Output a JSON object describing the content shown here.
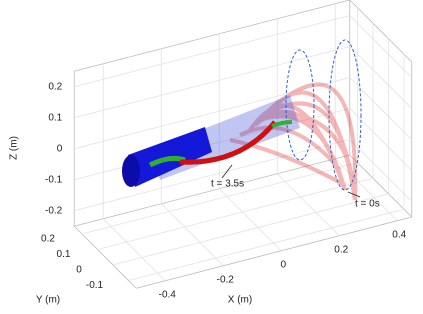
{
  "chart_data": {
    "type": "box3d",
    "xlabel": "X (m)",
    "ylabel": "Y (m)",
    "zlabel": "Z (m)",
    "xlim": [
      -0.5,
      0.45
    ],
    "ylim": [
      -0.15,
      0.25
    ],
    "zlim": [
      -0.25,
      0.25
    ],
    "xticks": [
      -0.4,
      -0.2,
      0,
      0.2,
      0.4
    ],
    "yticks": [
      -0.1,
      0,
      0.1,
      0.2
    ],
    "zticks": [
      -0.2,
      -0.1,
      0,
      0.1,
      0.2
    ],
    "grid": true,
    "annotations": [
      "t = 3.5s",
      "t = 0s"
    ]
  }
}
